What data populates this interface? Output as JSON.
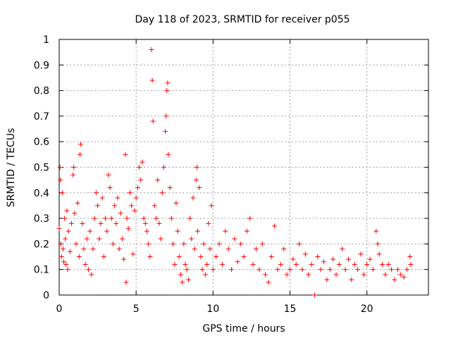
{
  "chart_data": {
    "type": "scatter",
    "title": "Day 118 of 2023, SRMTID for receiver p055",
    "xlabel": "GPS time / hours",
    "ylabel": "SRMTID / TECUs",
    "xlim": [
      0,
      24
    ],
    "ylim": [
      0,
      1
    ],
    "xticks": [
      0,
      5,
      10,
      15,
      20
    ],
    "yticks": [
      0,
      0.1,
      0.2,
      0.3,
      0.4,
      0.5,
      0.6,
      0.7,
      0.8,
      0.9,
      1
    ],
    "xtick_labels": [
      "0",
      "5",
      "10",
      "15",
      "20"
    ],
    "ytick_labels": [
      "0",
      "0.1",
      "0.2",
      "0.3",
      "0.4",
      "0.5",
      "0.6",
      "0.7",
      "0.8",
      "0.9",
      "1"
    ],
    "grid": true,
    "marker": "+",
    "color": "#ff0000",
    "series": [
      {
        "name": "SRMTID",
        "points": [
          [
            0.0,
            0.26
          ],
          [
            0.05,
            0.5
          ],
          [
            0.08,
            0.45
          ],
          [
            0.1,
            0.2
          ],
          [
            0.15,
            0.15
          ],
          [
            0.2,
            0.4
          ],
          [
            0.25,
            0.18
          ],
          [
            0.3,
            0.13
          ],
          [
            0.35,
            0.3
          ],
          [
            0.4,
            0.22
          ],
          [
            0.45,
            0.12
          ],
          [
            0.5,
            0.33
          ],
          [
            0.55,
            0.1
          ],
          [
            0.6,
            0.25
          ],
          [
            0.7,
            0.17
          ],
          [
            0.8,
            0.28
          ],
          [
            0.9,
            0.47
          ],
          [
            0.95,
            0.5
          ],
          [
            1.0,
            0.32
          ],
          [
            1.1,
            0.2
          ],
          [
            1.2,
            0.36
          ],
          [
            1.3,
            0.15
          ],
          [
            1.35,
            0.55
          ],
          [
            1.4,
            0.59
          ],
          [
            1.5,
            0.28
          ],
          [
            1.6,
            0.18
          ],
          [
            1.7,
            0.12
          ],
          [
            1.8,
            0.22
          ],
          [
            1.9,
            0.1
          ],
          [
            2.0,
            0.25
          ],
          [
            2.1,
            0.08
          ],
          [
            2.2,
            0.18
          ],
          [
            2.3,
            0.3
          ],
          [
            2.4,
            0.4
          ],
          [
            2.5,
            0.35
          ],
          [
            2.6,
            0.22
          ],
          [
            2.7,
            0.28
          ],
          [
            2.8,
            0.38
          ],
          [
            2.9,
            0.15
          ],
          [
            3.0,
            0.3
          ],
          [
            3.1,
            0.25
          ],
          [
            3.2,
            0.47
          ],
          [
            3.3,
            0.42
          ],
          [
            3.4,
            0.3
          ],
          [
            3.5,
            0.2
          ],
          [
            3.6,
            0.35
          ],
          [
            3.7,
            0.28
          ],
          [
            3.8,
            0.38
          ],
          [
            3.9,
            0.18
          ],
          [
            4.0,
            0.32
          ],
          [
            4.1,
            0.22
          ],
          [
            4.2,
            0.14
          ],
          [
            4.3,
            0.55
          ],
          [
            4.35,
            0.05
          ],
          [
            4.4,
            0.3
          ],
          [
            4.5,
            0.26
          ],
          [
            4.6,
            0.4
          ],
          [
            4.7,
            0.35
          ],
          [
            4.8,
            0.16
          ],
          [
            4.9,
            0.33
          ],
          [
            5.0,
            0.38
          ],
          [
            5.1,
            0.42
          ],
          [
            5.2,
            0.5
          ],
          [
            5.3,
            0.45
          ],
          [
            5.4,
            0.52
          ],
          [
            5.5,
            0.3
          ],
          [
            5.6,
            0.28
          ],
          [
            5.7,
            0.25
          ],
          [
            5.8,
            0.2
          ],
          [
            5.9,
            0.15
          ],
          [
            6.0,
            0.96
          ],
          [
            6.05,
            0.84
          ],
          [
            6.1,
            0.68
          ],
          [
            6.2,
            0.35
          ],
          [
            6.3,
            0.3
          ],
          [
            6.4,
            0.45
          ],
          [
            6.5,
            0.28
          ],
          [
            6.6,
            0.22
          ],
          [
            6.7,
            0.4
          ],
          [
            6.8,
            0.5
          ],
          [
            6.9,
            0.64
          ],
          [
            6.95,
            0.7
          ],
          [
            7.0,
            0.8
          ],
          [
            7.05,
            0.83
          ],
          [
            7.1,
            0.55
          ],
          [
            7.2,
            0.42
          ],
          [
            7.3,
            0.3
          ],
          [
            7.4,
            0.2
          ],
          [
            7.5,
            0.12
          ],
          [
            7.6,
            0.36
          ],
          [
            7.7,
            0.25
          ],
          [
            7.8,
            0.15
          ],
          [
            7.9,
            0.08
          ],
          [
            8.0,
            0.05
          ],
          [
            8.1,
            0.2
          ],
          [
            8.2,
            0.12
          ],
          [
            8.3,
            0.1
          ],
          [
            8.4,
            0.06
          ],
          [
            8.5,
            0.3
          ],
          [
            8.6,
            0.22
          ],
          [
            8.7,
            0.38
          ],
          [
            8.8,
            0.18
          ],
          [
            8.9,
            0.45
          ],
          [
            8.95,
            0.5
          ],
          [
            9.0,
            0.25
          ],
          [
            9.1,
            0.42
          ],
          [
            9.2,
            0.15
          ],
          [
            9.3,
            0.1
          ],
          [
            9.4,
            0.2
          ],
          [
            9.5,
            0.08
          ],
          [
            9.6,
            0.12
          ],
          [
            9.7,
            0.28
          ],
          [
            9.8,
            0.18
          ],
          [
            9.9,
            0.35
          ],
          [
            10.0,
            0.1
          ],
          [
            10.2,
            0.15
          ],
          [
            10.4,
            0.2
          ],
          [
            10.6,
            0.12
          ],
          [
            10.8,
            0.25
          ],
          [
            11.0,
            0.18
          ],
          [
            11.2,
            0.1
          ],
          [
            11.4,
            0.22
          ],
          [
            11.6,
            0.13
          ],
          [
            11.8,
            0.2
          ],
          [
            12.0,
            0.15
          ],
          [
            12.2,
            0.25
          ],
          [
            12.4,
            0.3
          ],
          [
            12.6,
            0.12
          ],
          [
            12.8,
            0.18
          ],
          [
            13.0,
            0.1
          ],
          [
            13.2,
            0.2
          ],
          [
            13.4,
            0.08
          ],
          [
            13.6,
            0.05
          ],
          [
            13.8,
            0.15
          ],
          [
            14.0,
            0.27
          ],
          [
            14.2,
            0.1
          ],
          [
            14.4,
            0.12
          ],
          [
            14.6,
            0.18
          ],
          [
            14.8,
            0.08
          ],
          [
            15.0,
            0.1
          ],
          [
            15.2,
            0.14
          ],
          [
            15.4,
            0.12
          ],
          [
            15.6,
            0.2
          ],
          [
            15.8,
            0.1
          ],
          [
            16.0,
            0.16
          ],
          [
            16.2,
            0.08
          ],
          [
            16.4,
            0.12
          ],
          [
            16.6,
            0.0
          ],
          [
            16.8,
            0.15
          ],
          [
            17.0,
            0.1
          ],
          [
            17.2,
            0.13
          ],
          [
            17.4,
            0.06
          ],
          [
            17.6,
            0.1
          ],
          [
            17.8,
            0.14
          ],
          [
            18.0,
            0.08
          ],
          [
            18.2,
            0.12
          ],
          [
            18.4,
            0.18
          ],
          [
            18.6,
            0.1
          ],
          [
            18.8,
            0.14
          ],
          [
            19.0,
            0.06
          ],
          [
            19.2,
            0.12
          ],
          [
            19.4,
            0.1
          ],
          [
            19.6,
            0.16
          ],
          [
            19.8,
            0.08
          ],
          [
            20.0,
            0.12
          ],
          [
            20.2,
            0.14
          ],
          [
            20.4,
            0.1
          ],
          [
            20.6,
            0.25
          ],
          [
            20.7,
            0.2
          ],
          [
            20.8,
            0.16
          ],
          [
            21.0,
            0.12
          ],
          [
            21.2,
            0.08
          ],
          [
            21.4,
            0.12
          ],
          [
            21.6,
            0.1
          ],
          [
            21.8,
            0.06
          ],
          [
            22.0,
            0.1
          ],
          [
            22.2,
            0.08
          ],
          [
            22.4,
            0.07
          ],
          [
            22.6,
            0.1
          ],
          [
            22.8,
            0.15
          ],
          [
            22.85,
            0.12
          ]
        ]
      }
    ]
  }
}
